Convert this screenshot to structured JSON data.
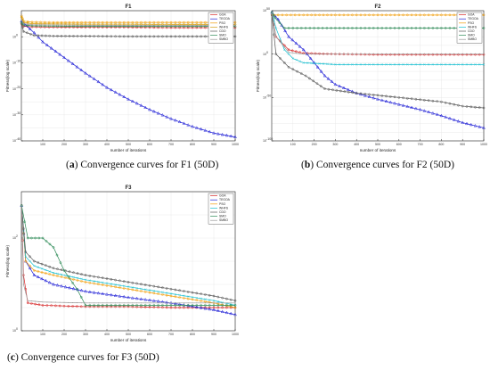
{
  "panels": [
    {
      "title": "F1",
      "caption_letter": "a",
      "caption_text": "Convergence curves for F1 (50D)"
    },
    {
      "title": "F2",
      "caption_letter": "b",
      "caption_text": "Convergence curves for F2 (50D)"
    },
    {
      "title": "F3",
      "caption_letter": "c",
      "caption_text": "Convergence curves for F3 (50D)"
    }
  ],
  "chart_data": [
    {
      "type": "line",
      "title": "F1",
      "xlabel": "number of iterations",
      "ylabel": "Fitness(log scale)",
      "log_y": true,
      "xlim": [
        0,
        1000
      ],
      "ylim_exp": [
        -40,
        10
      ],
      "xticks": [
        100,
        200,
        300,
        400,
        500,
        600,
        700,
        800,
        900,
        1000
      ],
      "yticks": [
        {
          "label": "10",
          "exp": "0",
          "value_exp": 0
        },
        {
          "label": "10",
          "exp": "-10",
          "value_exp": -10
        },
        {
          "label": "10",
          "exp": "-20",
          "value_exp": -20
        },
        {
          "label": "10",
          "exp": "-30",
          "value_exp": -30
        },
        {
          "label": "10",
          "exp": "-40",
          "value_exp": -40
        }
      ],
      "grid": true,
      "legend_position": "top-right",
      "series": [
        {
          "name": "GOA",
          "color": "#d62728",
          "marker": "o",
          "x": [
            1,
            10,
            50,
            150,
            300,
            500,
            700,
            900,
            1000
          ],
          "y_exp": [
            5,
            4,
            3.8,
            3.7,
            3.6,
            3.6,
            3.5,
            3.5,
            3.5
          ]
        },
        {
          "name": "TEGOA",
          "color": "#1f1fd6",
          "marker": "^",
          "x": [
            1,
            20,
            60,
            100,
            200,
            300,
            400,
            500,
            600,
            700,
            800,
            900,
            1000
          ],
          "y_exp": [
            6,
            4.5,
            1.5,
            -2,
            -8,
            -14,
            -19.5,
            -24,
            -28,
            -31.5,
            -34.5,
            -37,
            -38.5
          ]
        },
        {
          "name": "PSO",
          "color": "#f29e0b",
          "marker": "o",
          "x": [
            1,
            10,
            50,
            150,
            300,
            500,
            700,
            900,
            1000
          ],
          "y_exp": [
            8,
            6,
            5.6,
            5.5,
            5.5,
            5.5,
            5.5,
            5.5,
            5.5
          ]
        },
        {
          "name": "WHFS",
          "color": "#d4a017",
          "marker": "o",
          "x": [
            1,
            10,
            50,
            150,
            300,
            500,
            700,
            900,
            1000
          ],
          "y_exp": [
            7.5,
            5.5,
            5,
            4.9,
            4.8,
            4.8,
            4.7,
            4.7,
            4.7
          ]
        },
        {
          "name": "CDO",
          "color": "#555555",
          "marker": "o",
          "x": [
            1,
            10,
            60,
            150,
            300,
            500,
            700,
            900,
            1000
          ],
          "y_exp": [
            5,
            2,
            0.5,
            0.3,
            0.2,
            0.1,
            0.1,
            0.1,
            0.1
          ]
        },
        {
          "name": "SMO",
          "color": "#2e8b57",
          "marker": "o",
          "x": [
            1,
            10,
            50,
            150,
            300,
            500,
            700,
            900,
            1000
          ],
          "y_exp": [
            5.5,
            4.5,
            4.2,
            4.1,
            4.0,
            4.0,
            4.0,
            4.0,
            4.0
          ]
        },
        {
          "name": "SMBO",
          "color": "#999999",
          "marker": ".",
          "x": [
            1,
            10,
            50,
            150,
            300,
            500,
            700,
            900,
            1000
          ],
          "y_exp": [
            6.5,
            5,
            4.6,
            4.5,
            4.4,
            4.4,
            4.3,
            4.3,
            4.3
          ]
        }
      ]
    },
    {
      "type": "line",
      "title": "F2",
      "xlabel": "number of iterations",
      "ylabel": "Fitness(log scale)",
      "log_y": true,
      "xlim": [
        0,
        1000
      ],
      "ylim_exp": [
        -100,
        50
      ],
      "xticks": [
        100,
        200,
        300,
        400,
        500,
        600,
        700,
        800,
        900,
        1000
      ],
      "yticks": [
        {
          "label": "10",
          "exp": "50",
          "value_exp": 50
        },
        {
          "label": "10",
          "exp": "0",
          "value_exp": 0
        },
        {
          "label": "10",
          "exp": "-50",
          "value_exp": -50
        },
        {
          "label": "10",
          "exp": "-100",
          "value_exp": -100
        }
      ],
      "grid": true,
      "legend_position": "top-right",
      "series": [
        {
          "name": "GOA",
          "color": "#d62728",
          "marker": "o",
          "x": [
            1,
            20,
            80,
            150,
            300,
            500,
            700,
            900,
            1000
          ],
          "y_exp": [
            48,
            20,
            5,
            1,
            0,
            -0.5,
            -0.5,
            -0.5,
            -0.5
          ]
        },
        {
          "name": "TEGOA",
          "color": "#1f1fd6",
          "marker": "^",
          "x": [
            1,
            30,
            80,
            150,
            200,
            250,
            300,
            400,
            500,
            600,
            700,
            800,
            900,
            1000
          ],
          "y_exp": [
            48,
            40,
            20,
            5,
            -10,
            -25,
            -35,
            -45,
            -52,
            -58,
            -64,
            -71,
            -79,
            -85
          ]
        },
        {
          "name": "PSO",
          "color": "#f29e0b",
          "marker": "o",
          "x": [
            1,
            10,
            50,
            150,
            300,
            500,
            700,
            900,
            1000
          ],
          "y_exp": [
            45,
            45,
            45,
            45,
            45,
            45,
            45,
            45,
            45
          ]
        },
        {
          "name": "WHFS",
          "color": "#17becf",
          "marker": "x",
          "x": [
            1,
            20,
            60,
            100,
            150,
            300,
            500,
            700,
            900,
            1000
          ],
          "y_exp": [
            48,
            30,
            5,
            -5,
            -10,
            -12,
            -12,
            -12,
            -12,
            -12
          ]
        },
        {
          "name": "CDO",
          "color": "#555555",
          "marker": "o",
          "x": [
            1,
            20,
            80,
            160,
            250,
            400,
            600,
            800,
            900,
            1000
          ],
          "y_exp": [
            45,
            0,
            -15,
            -25,
            -40,
            -45,
            -50,
            -55,
            -60,
            -62
          ]
        },
        {
          "name": "SMO",
          "color": "#2e8b57",
          "marker": "o",
          "x": [
            1,
            15,
            60,
            120,
            300,
            500,
            700,
            900,
            1000
          ],
          "y_exp": [
            48,
            42,
            30,
            30,
            30,
            30,
            30,
            30,
            30
          ]
        },
        {
          "name": "SMBO",
          "color": "#999999",
          "marker": ".",
          "x": [
            1,
            20,
            80,
            150,
            300,
            500,
            700,
            900,
            1000
          ],
          "y_exp": [
            48,
            20,
            2,
            0,
            0,
            0,
            0,
            0,
            0
          ]
        }
      ]
    },
    {
      "type": "line",
      "title": "F3",
      "xlabel": "number of iterations",
      "ylabel": "Fitness(log scale)",
      "log_y": true,
      "xlim": [
        0,
        1000
      ],
      "ylim_exp": [
        0,
        3
      ],
      "xticks": [
        100,
        200,
        300,
        400,
        500,
        600,
        700,
        800,
        900,
        1000
      ],
      "yticks": [
        {
          "label": "10",
          "exp": "2",
          "value_exp": 2
        },
        {
          "label": "10",
          "exp": "0",
          "value_exp": 0
        }
      ],
      "grid": true,
      "legend_position": "top-right",
      "series": [
        {
          "name": "GOA",
          "color": "#d62728",
          "marker": "o",
          "x": [
            1,
            10,
            30,
            100,
            300,
            500,
            700,
            900,
            1000
          ],
          "y_exp": [
            2.7,
            1.2,
            0.6,
            0.55,
            0.52,
            0.52,
            0.5,
            0.5,
            0.5
          ]
        },
        {
          "name": "TEGOA",
          "color": "#1f1fd6",
          "marker": "^",
          "x": [
            1,
            20,
            60,
            150,
            300,
            500,
            700,
            900,
            1000
          ],
          "y_exp": [
            2.7,
            1.5,
            1.2,
            1.0,
            0.85,
            0.72,
            0.6,
            0.45,
            0.35
          ]
        },
        {
          "name": "PSO",
          "color": "#f29e0b",
          "marker": "o",
          "x": [
            1,
            20,
            60,
            150,
            300,
            500,
            700,
            900,
            1000
          ],
          "y_exp": [
            2.7,
            1.5,
            1.3,
            1.2,
            1.05,
            0.9,
            0.75,
            0.6,
            0.5
          ]
        },
        {
          "name": "WHFS",
          "color": "#17becf",
          "marker": "x",
          "x": [
            1,
            20,
            60,
            150,
            300,
            500,
            700,
            900,
            1000
          ],
          "y_exp": [
            2.7,
            1.6,
            1.4,
            1.25,
            1.1,
            0.95,
            0.8,
            0.65,
            0.55
          ]
        },
        {
          "name": "CDO",
          "color": "#555555",
          "marker": "o",
          "x": [
            1,
            20,
            60,
            150,
            300,
            500,
            700,
            900,
            1000
          ],
          "y_exp": [
            2.7,
            1.7,
            1.5,
            1.35,
            1.2,
            1.05,
            0.9,
            0.75,
            0.65
          ]
        },
        {
          "name": "SMO",
          "color": "#2e8b57",
          "marker": "o",
          "x": [
            1,
            30,
            100,
            150,
            200,
            260,
            300,
            500,
            700,
            900,
            1000
          ],
          "y_exp": [
            2.7,
            2.0,
            2.0,
            1.8,
            1.3,
            0.9,
            0.55,
            0.55,
            0.55,
            0.55,
            0.55
          ]
        },
        {
          "name": "SMBO",
          "color": "#999999",
          "marker": ".",
          "x": [
            1,
            10,
            30,
            100,
            300,
            500,
            700,
            900,
            1000
          ],
          "y_exp": [
            2.7,
            1.0,
            0.65,
            0.62,
            0.6,
            0.6,
            0.6,
            0.6,
            0.6
          ]
        }
      ]
    }
  ]
}
